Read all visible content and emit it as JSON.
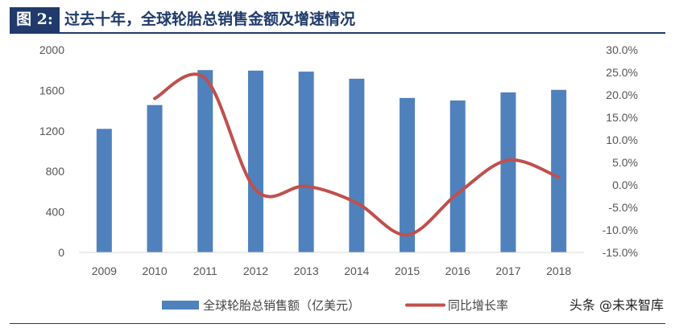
{
  "header": {
    "figure_tag": "图 2:",
    "title": "过去十年，全球轮胎总销售金额及增速情况"
  },
  "watermark": "头条 @未来智库",
  "colors": {
    "bar": "#4f81bd",
    "line": "#c0504d",
    "header": "#1f3a6b"
  },
  "chart_data": {
    "type": "bar",
    "title": "过去十年，全球轮胎总销售金额及增速情况",
    "categories": [
      "2009",
      "2010",
      "2011",
      "2012",
      "2013",
      "2014",
      "2015",
      "2016",
      "2017",
      "2018"
    ],
    "series": [
      {
        "name": "全球轮胎总销售额（亿美元）",
        "type": "bar",
        "axis": "left",
        "values": [
          1220,
          1455,
          1800,
          1795,
          1785,
          1715,
          1525,
          1500,
          1580,
          1605
        ]
      },
      {
        "name": "同比增长率",
        "type": "line",
        "axis": "right",
        "values": [
          null,
          19.2,
          23.7,
          -1.1,
          -0.3,
          -4.0,
          -11.1,
          -1.9,
          5.5,
          1.7
        ]
      }
    ],
    "y_left": {
      "min": 0,
      "max": 2000,
      "ticks": [
        "0",
        "400",
        "800",
        "1200",
        "1600",
        "2000"
      ]
    },
    "y_right": {
      "min": -15,
      "max": 30,
      "ticks": [
        "-15.0%",
        "-10.0%",
        "-5.0%",
        "0.0%",
        "5.0%",
        "10.0%",
        "15.0%",
        "20.0%",
        "25.0%",
        "30.0%"
      ]
    },
    "legend_position": "bottom",
    "grid": false
  }
}
